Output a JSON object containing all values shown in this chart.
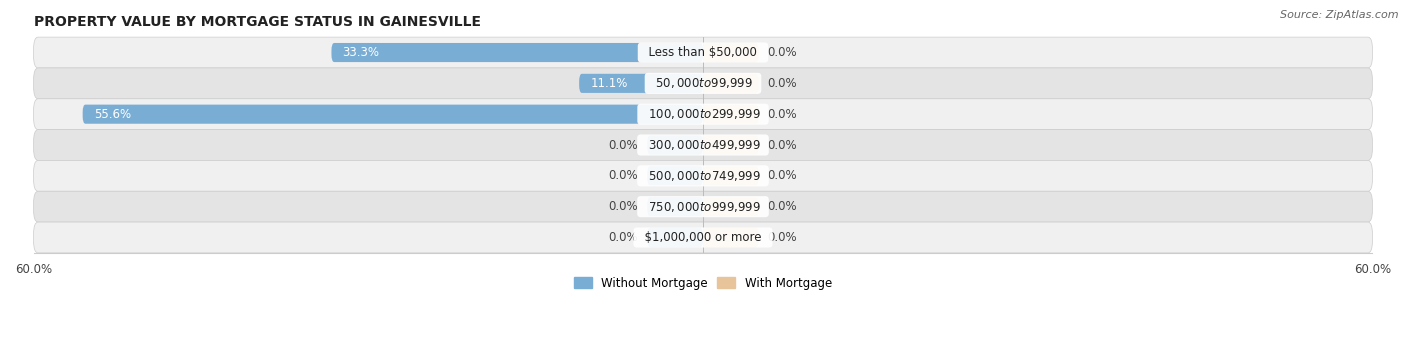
{
  "title": "PROPERTY VALUE BY MORTGAGE STATUS IN GAINESVILLE",
  "source": "Source: ZipAtlas.com",
  "categories": [
    "Less than $50,000",
    "$50,000 to $99,999",
    "$100,000 to $299,999",
    "$300,000 to $499,999",
    "$500,000 to $749,999",
    "$750,000 to $999,999",
    "$1,000,000 or more"
  ],
  "without_mortgage": [
    33.3,
    11.1,
    55.6,
    0.0,
    0.0,
    0.0,
    0.0
  ],
  "with_mortgage": [
    0.0,
    0.0,
    0.0,
    0.0,
    0.0,
    0.0,
    0.0
  ],
  "xlim": [
    -60,
    60
  ],
  "stub_size": 5.0,
  "bar_color_without": "#7aadd4",
  "bar_color_with": "#e8c49a",
  "bar_height": 0.62,
  "bg_color_row_light": "#f0f0f0",
  "bg_color_row_dark": "#e4e4e4",
  "label_color_dark": "#444444",
  "label_color_white": "#ffffff",
  "title_fontsize": 10,
  "source_fontsize": 8,
  "label_fontsize": 8.5,
  "category_fontsize": 8.5,
  "tick_fontsize": 8.5,
  "legend_fontsize": 8.5,
  "row_border_color": "#cccccc"
}
